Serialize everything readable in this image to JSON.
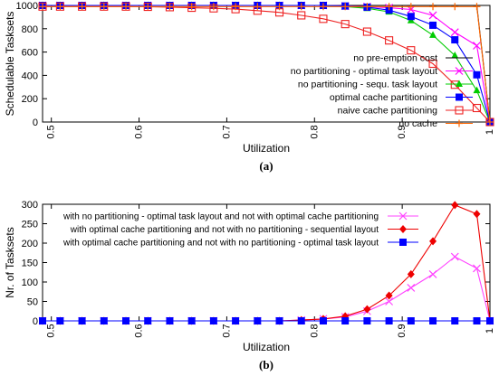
{
  "chart_data": [
    {
      "type": "line",
      "caption": "(a)",
      "xlabel": "Utilization",
      "ylabel": "Schedulable Tasksets",
      "xlim": [
        0.49,
        1.0
      ],
      "ylim": [
        0,
        1000
      ],
      "xticks": [
        0.5,
        0.6,
        0.7,
        0.8,
        0.9,
        1
      ],
      "xtick_labels": [
        "0.5",
        "0.6",
        "0.7",
        "0.8",
        "0.9",
        "1"
      ],
      "yticks": [
        0,
        200,
        400,
        600,
        800,
        1000
      ],
      "ytick_labels": [
        "0",
        "200",
        "400",
        "600",
        "800",
        "1000"
      ],
      "grid": false,
      "legend_position": "center-right",
      "x": [
        0.49,
        0.51,
        0.535,
        0.56,
        0.585,
        0.61,
        0.635,
        0.66,
        0.685,
        0.71,
        0.735,
        0.76,
        0.785,
        0.81,
        0.835,
        0.86,
        0.885,
        0.91,
        0.935,
        0.96,
        0.985,
        1.0
      ],
      "series": [
        {
          "name": "no pre-emption cost",
          "color": "#000000",
          "marker": "none",
          "x": [
            0.49,
            0.985,
            1.0
          ],
          "values": [
            1000,
            1000,
            0
          ]
        },
        {
          "name": "no partitioning - optimal task layout",
          "color": "#ff00ff",
          "marker": "x",
          "values": [
            1000,
            1000,
            1000,
            1000,
            1000,
            1000,
            1000,
            1000,
            1000,
            1000,
            1000,
            1000,
            1000,
            1000,
            995,
            990,
            980,
            965,
            915,
            770,
            655,
            0
          ]
        },
        {
          "name": "no partitioning - sequ. task layout",
          "color": "#00cc00",
          "marker": "triangle",
          "values": [
            1000,
            1000,
            1000,
            1000,
            1000,
            1000,
            1000,
            1000,
            1000,
            1000,
            1000,
            1000,
            1000,
            1000,
            990,
            975,
            945,
            870,
            745,
            570,
            270,
            0
          ]
        },
        {
          "name": "optimal cache partitioning",
          "color": "#0000ff",
          "marker": "square",
          "values": [
            1000,
            1000,
            1000,
            1000,
            1000,
            1000,
            1000,
            1000,
            1000,
            1000,
            1000,
            1000,
            1000,
            1000,
            995,
            985,
            960,
            905,
            830,
            705,
            405,
            0
          ]
        },
        {
          "name": "naive cache partitioning",
          "color": "#ee2222",
          "marker": "open-square",
          "values": [
            990,
            990,
            990,
            990,
            990,
            988,
            985,
            980,
            975,
            968,
            955,
            940,
            915,
            885,
            840,
            775,
            700,
            615,
            500,
            320,
            120,
            0
          ]
        },
        {
          "name": "no cache",
          "color": "#ff6600",
          "marker": "plus",
          "values": [
            990,
            990,
            990,
            990,
            990,
            990,
            990,
            990,
            990,
            990,
            990,
            990,
            990,
            990,
            990,
            990,
            990,
            990,
            990,
            990,
            990,
            0
          ]
        }
      ]
    },
    {
      "type": "line",
      "caption": "(b)",
      "xlabel": "Utilization",
      "ylabel": "Nr. of Tasksets",
      "xlim": [
        0.49,
        1.0
      ],
      "ylim": [
        0,
        300
      ],
      "xticks": [
        0.5,
        0.6,
        0.7,
        0.8,
        0.9,
        1
      ],
      "xtick_labels": [
        "0.5",
        "0.6",
        "0.7",
        "0.8",
        "0.9",
        "1"
      ],
      "yticks": [
        0,
        50,
        100,
        150,
        200,
        250,
        300
      ],
      "ytick_labels": [
        "0",
        "50",
        "100",
        "150",
        "200",
        "250",
        "300"
      ],
      "grid": false,
      "legend_position": "center-right",
      "x": [
        0.49,
        0.51,
        0.535,
        0.56,
        0.585,
        0.61,
        0.635,
        0.66,
        0.685,
        0.71,
        0.735,
        0.76,
        0.785,
        0.81,
        0.835,
        0.86,
        0.885,
        0.91,
        0.935,
        0.96,
        0.985,
        1.0
      ],
      "series": [
        {
          "name": "with no partitioning - optimal task layout and not with optimal cache partitioning",
          "color": "#ff44ff",
          "marker": "x",
          "values": [
            0,
            0,
            0,
            0,
            0,
            0,
            0,
            0,
            0,
            0,
            0,
            0,
            2,
            5,
            10,
            25,
            50,
            85,
            120,
            165,
            135,
            0
          ]
        },
        {
          "name": "with optimal cache partitioning and not with no partitioning - sequential layout",
          "color": "#ee0000",
          "marker": "diamond",
          "values": [
            0,
            0,
            0,
            0,
            0,
            0,
            0,
            0,
            0,
            0,
            0,
            0,
            2,
            5,
            12,
            30,
            65,
            120,
            205,
            298,
            275,
            0
          ]
        },
        {
          "name": "with optimal cache partitioning and not with no partitioning - optimal task layout",
          "color": "#0000ff",
          "marker": "square",
          "values": [
            0,
            0,
            0,
            0,
            0,
            0,
            0,
            0,
            0,
            0,
            0,
            0,
            0,
            0,
            0,
            0,
            0,
            0,
            0,
            0,
            0,
            0
          ]
        }
      ]
    }
  ]
}
